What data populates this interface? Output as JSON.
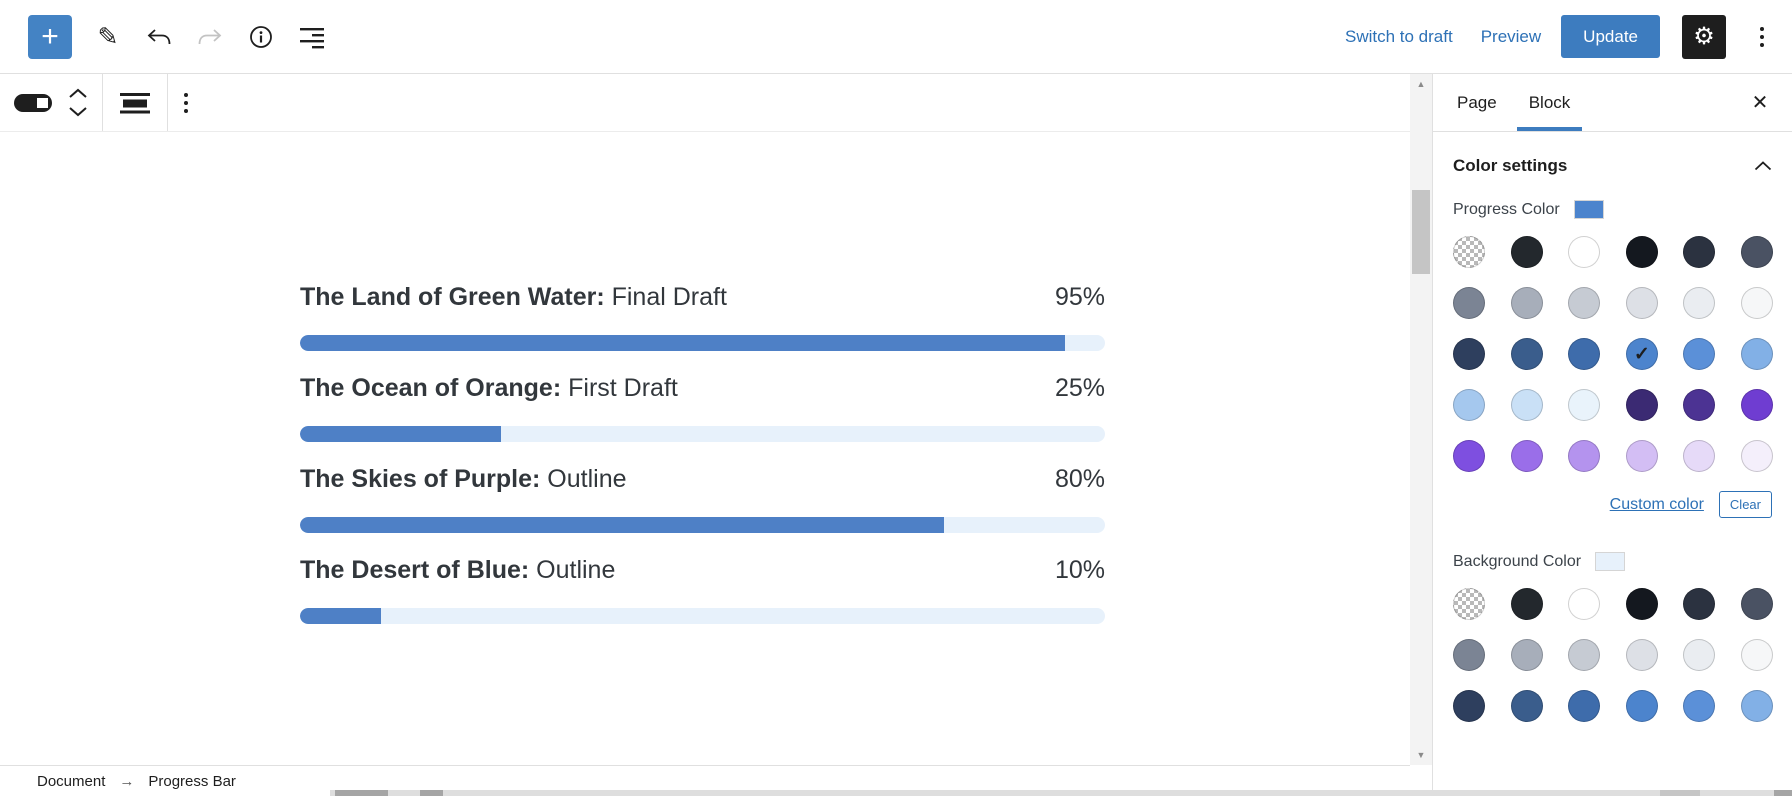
{
  "header": {
    "inserter_label": "+",
    "links": {
      "switch_to_draft": "Switch to draft",
      "preview": "Preview"
    },
    "update_button": "Update"
  },
  "icons": {
    "pencil": "✎",
    "gear": "⚙",
    "check": "✓",
    "close": "✕",
    "scroll_up": "▲",
    "scroll_down": "▼"
  },
  "content": {
    "progress_block": {
      "bars": [
        {
          "title": "The Land of Green Water:",
          "status": "Final Draft",
          "percent": 95,
          "percent_label": "95%"
        },
        {
          "title": "The Ocean of Orange:",
          "status": "First Draft",
          "percent": 25,
          "percent_label": "25%"
        },
        {
          "title": "The Skies of Purple:",
          "status": "Outline",
          "percent": 80,
          "percent_label": "80%"
        },
        {
          "title": "The Desert of Blue:",
          "status": "Outline",
          "percent": 10,
          "percent_label": "10%"
        }
      ],
      "fill_color": "#4e80c6",
      "track_color": "#e7f1fb"
    },
    "breadcrumb": {
      "root": "Document",
      "arrow": "→",
      "current": "Progress Bar"
    }
  },
  "sidebar": {
    "tabs": [
      {
        "label": "Page"
      },
      {
        "label": "Block"
      }
    ],
    "active_tab": "Block",
    "color_settings": {
      "title": "Color settings",
      "progress_color": {
        "label": "Progress Color",
        "value": "#4c84cd",
        "selected_index": 15
      },
      "custom_color_link": "Custom color",
      "clear_button": "Clear",
      "background_color": {
        "label": "Background Color",
        "value": "#e7f1fb",
        "visible_rows": 3
      }
    }
  },
  "palette": [
    "checker",
    "#23282d",
    "#ffffff",
    "#14181f",
    "#2b3240",
    "#4a5263",
    "#7b8494",
    "#a7aeba",
    "#c6cbd3",
    "#dde0e6",
    "#eaedf1",
    "#f6f7f8",
    "#2e3f5e",
    "#3a5d8c",
    "#3e6cab",
    "#4c84cd",
    "#5b90d8",
    "#82b0e6",
    "#a5c8ee",
    "#c9e0f6",
    "#e9f3fb",
    "#3b2a73",
    "#4c3393",
    "#6f3dd1",
    "#7e4fe0",
    "#9a6ee9",
    "#b493ee",
    "#d3bef4",
    "#e6daf8",
    "#f4effb"
  ],
  "colors": {
    "accent": "#3d7cbf",
    "link": "#2d71b6",
    "inserter": "#4483c4"
  }
}
